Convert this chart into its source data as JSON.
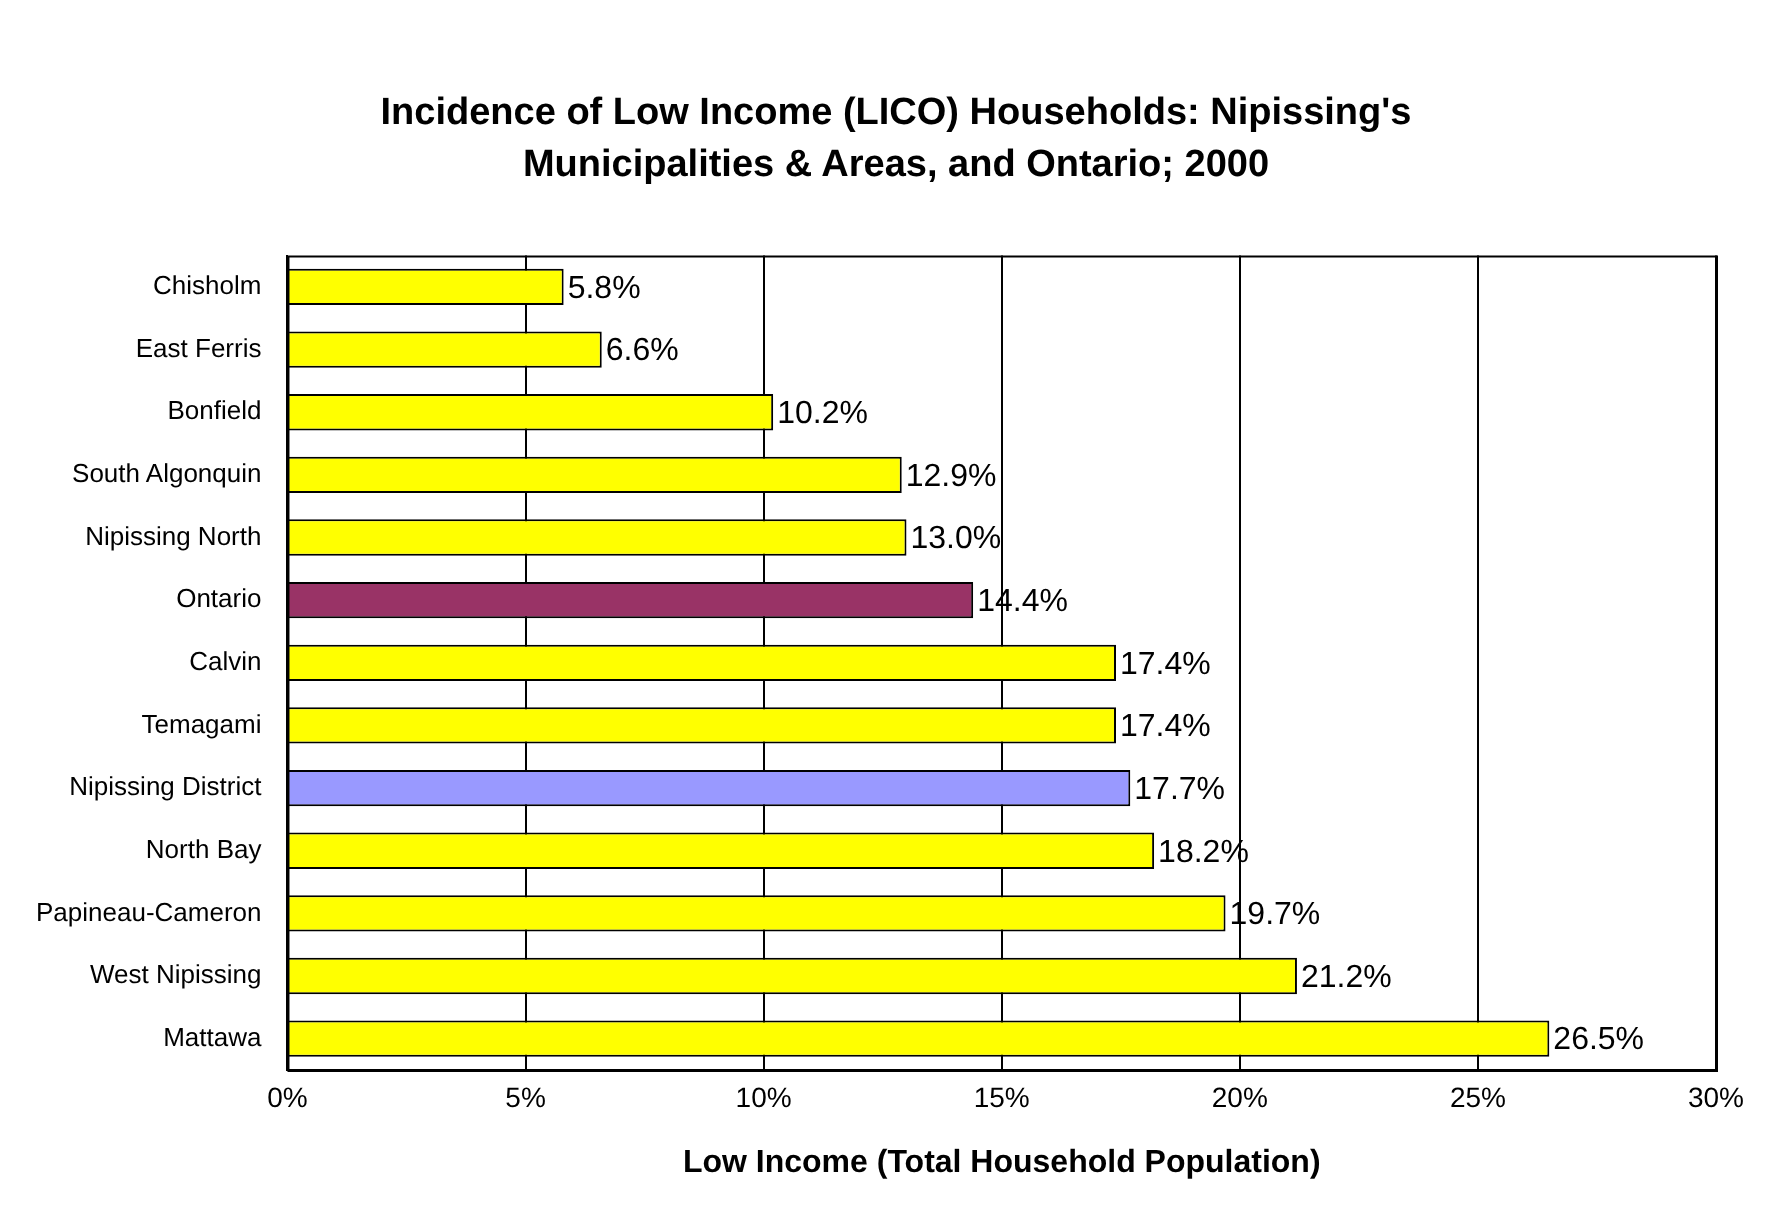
{
  "chart_data": {
    "type": "bar",
    "orientation": "horizontal",
    "title": "Incidence of Low Income (LICO) Households: Nipissing's Municipalities & Areas, and Ontario; 2000",
    "xlabel": "Low Income (Total Household Population)",
    "categories": [
      "Chisholm",
      "East Ferris",
      "Bonfield",
      "South Algonquin",
      "Nipissing North",
      "Ontario",
      "Calvin",
      "Temagami",
      "Nipissing District",
      "North Bay",
      "Papineau-Cameron",
      "West Nipissing",
      "Mattawa"
    ],
    "values": [
      5.8,
      6.6,
      10.2,
      12.9,
      13.0,
      14.4,
      17.4,
      17.4,
      17.7,
      18.2,
      19.7,
      21.2,
      26.5
    ],
    "value_labels": [
      "5.8%",
      "6.6%",
      "10.2%",
      "12.9%",
      "13.0%",
      "14.4%",
      "17.4%",
      "17.4%",
      "17.7%",
      "18.2%",
      "19.7%",
      "21.2%",
      "26.5%"
    ],
    "colors": [
      "#ffff00",
      "#ffff00",
      "#ffff00",
      "#ffff00",
      "#ffff00",
      "#993366",
      "#ffff00",
      "#ffff00",
      "#9999ff",
      "#ffff00",
      "#ffff00",
      "#ffff00",
      "#ffff00"
    ],
    "xlim": [
      0,
      30
    ],
    "xticks": [
      {
        "value": 0,
        "label": "0%"
      },
      {
        "value": 5,
        "label": "5%"
      },
      {
        "value": 10,
        "label": "10%"
      },
      {
        "value": 15,
        "label": "15%"
      },
      {
        "value": 20,
        "label": "20%"
      },
      {
        "value": 25,
        "label": "25%"
      },
      {
        "value": 30,
        "label": "30%"
      }
    ],
    "grid": "x",
    "legend": false
  }
}
